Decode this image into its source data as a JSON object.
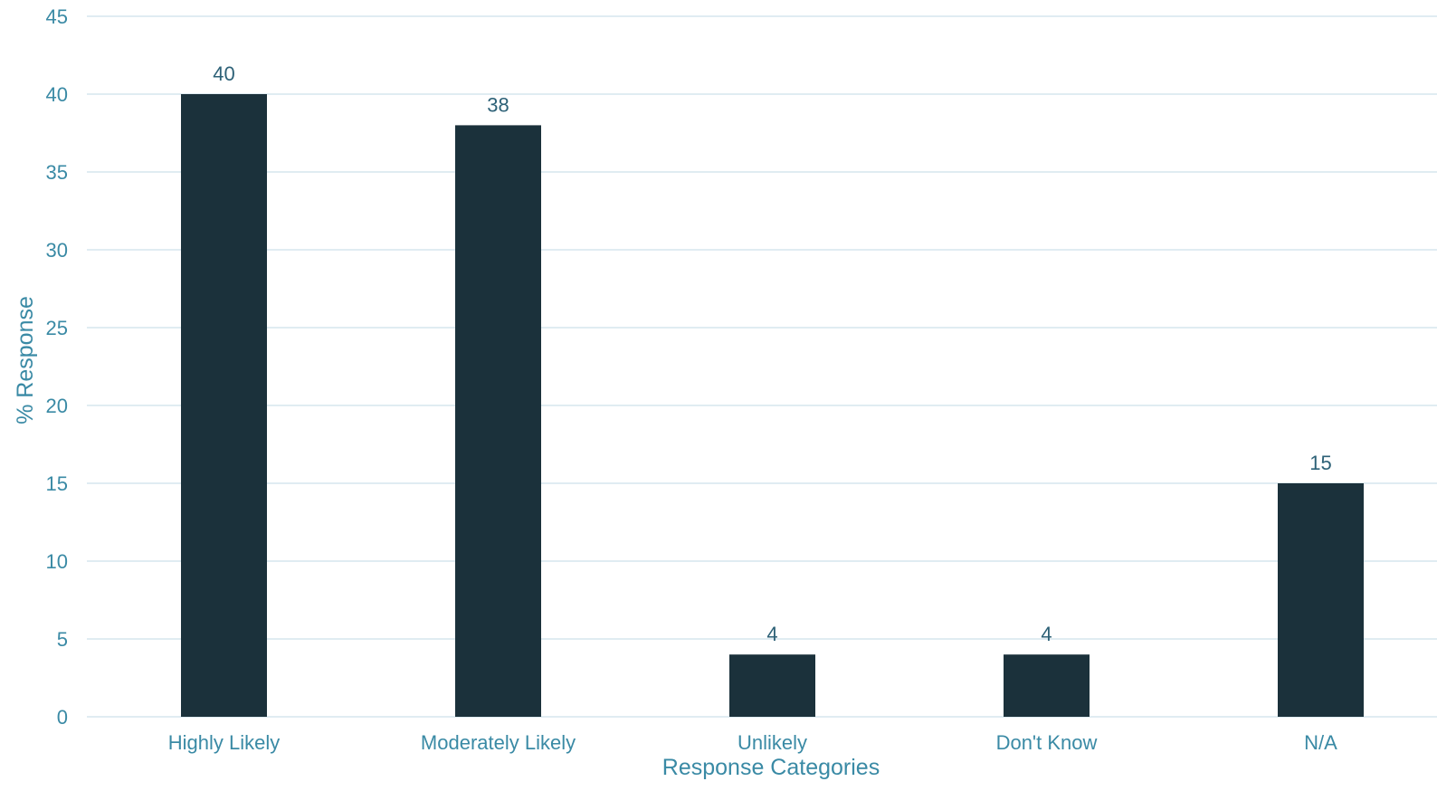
{
  "chart_data": {
    "type": "bar",
    "categories": [
      "Highly Likely",
      "Moderately Likely",
      "Unlikely",
      "Don't Know",
      "N/A"
    ],
    "values": [
      40,
      38,
      4,
      4,
      15
    ],
    "data_labels": [
      "40",
      "38",
      "4",
      "4",
      "15"
    ],
    "title": "",
    "xlabel": "Response Categories",
    "ylabel": "% Response",
    "ylim": [
      0,
      45
    ],
    "yticks": [
      0,
      5,
      10,
      15,
      20,
      25,
      30,
      35,
      40,
      45
    ],
    "grid": true,
    "legend": "none",
    "colors": {
      "bar": "#1b313b",
      "text": "#3a8aa5",
      "label": "#2d6177",
      "grid": "#d6e6ee"
    }
  }
}
